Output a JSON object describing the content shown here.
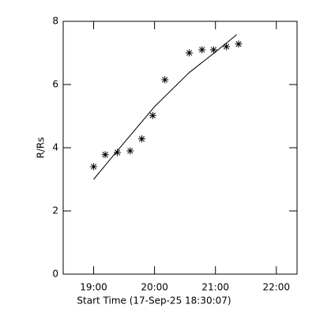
{
  "chart_data": {
    "type": "scatter",
    "xlabel": "Start Time (17-Sep-25 18:30:07)",
    "ylabel": "R/Rs",
    "xlim": [
      18.5,
      22.34
    ],
    "ylim": [
      0,
      8
    ],
    "xticks": [
      {
        "value": 19,
        "label": "19:00"
      },
      {
        "value": 20,
        "label": "20:00"
      },
      {
        "value": 21,
        "label": "21:00"
      },
      {
        "value": 22,
        "label": "22:00"
      }
    ],
    "yticks": [
      0,
      2,
      4,
      6,
      8
    ],
    "color": "#000000",
    "x": [
      19.0,
      19.19,
      19.39,
      19.6,
      19.79,
      19.97,
      20.17,
      20.57,
      20.78,
      20.97,
      21.18,
      21.38
    ],
    "values": [
      3.4,
      3.78,
      3.85,
      3.9,
      4.28,
      5.02,
      6.15,
      7.0,
      7.1,
      7.1,
      7.2,
      7.28
    ],
    "fit": {
      "x": [
        19.0,
        19.4,
        20.0,
        20.57,
        21.0,
        21.35
      ],
      "values": [
        3.0,
        3.93,
        5.3,
        6.38,
        7.03,
        7.58
      ]
    }
  }
}
